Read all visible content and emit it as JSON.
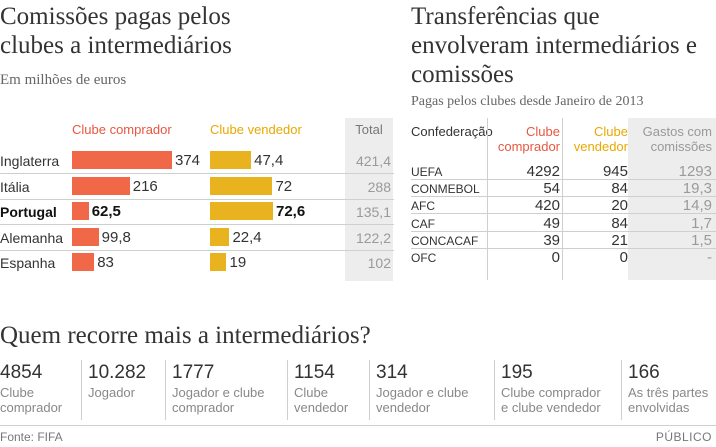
{
  "chart_data": [
    {
      "type": "bar",
      "title": "Comissões pagas pelos clubes a intermediários",
      "subtitle": "Em milhões de euros",
      "categories": [
        "Inglaterra",
        "Itália",
        "Portugal",
        "Alemanha",
        "Espanha"
      ],
      "highlight": "Portugal",
      "series": [
        {
          "name": "Clube comprador",
          "values": [
            374,
            216,
            62.5,
            99.8,
            83
          ],
          "labels": [
            "374",
            "216",
            "62,5",
            "99,8",
            "83"
          ],
          "color": "#f06848"
        },
        {
          "name": "Clube vendedor",
          "values": [
            47.4,
            72,
            72.6,
            22.4,
            19
          ],
          "labels": [
            "47,4",
            "72",
            "72,6",
            "22,4",
            "19"
          ],
          "color": "#e9b320"
        }
      ],
      "total_header": "Total",
      "totals": [
        "421,4",
        "288",
        "135,1",
        "122,2",
        "102"
      ]
    },
    {
      "type": "table",
      "title": "Transferências que envolveram intermediários e comissões",
      "subtitle": "Pagas pelos clubes desde Janeiro de 2013",
      "columns": [
        "Confederação",
        "Clube comprador",
        "Clube vendedor",
        "Gastos com comissões"
      ],
      "rows": [
        [
          "UEFA",
          "4292",
          "945",
          "1293"
        ],
        [
          "CONMEBOL",
          "54",
          "84",
          "19,3"
        ],
        [
          "AFC",
          "420",
          "20",
          "14,9"
        ],
        [
          "CAF",
          "49",
          "84",
          "1,7"
        ],
        [
          "CONCACAF",
          "39",
          "21",
          "1,5"
        ],
        [
          "OFC",
          "0",
          "0",
          "-"
        ]
      ]
    }
  ],
  "bottom": {
    "title": "Quem recorre mais a intermediários?",
    "stats": [
      {
        "value": "4854",
        "label_line1": "Clube",
        "label_line2": "comprador"
      },
      {
        "value": "10.282",
        "label_line1": "Jogador",
        "label_line2": ""
      },
      {
        "value": "1777",
        "label_line1": "Jogador e clube",
        "label_line2": "comprador"
      },
      {
        "value": "1154",
        "label_line1": "Clube",
        "label_line2": "vendedor"
      },
      {
        "value": "314",
        "label_line1": "Jogador e clube",
        "label_line2": "vendedor"
      },
      {
        "value": "195",
        "label_line1": "Clube comprador",
        "label_line2": "e clube vendedor"
      },
      {
        "value": "166",
        "label_line1": "As três partes",
        "label_line2": "envolvidas"
      }
    ]
  },
  "footer": {
    "source": "Fonte: FIFA",
    "brand": "PÚBLICO"
  },
  "colors": {
    "buyer": "#f06848",
    "seller": "#e9b320",
    "total_bg": "#ededed"
  }
}
